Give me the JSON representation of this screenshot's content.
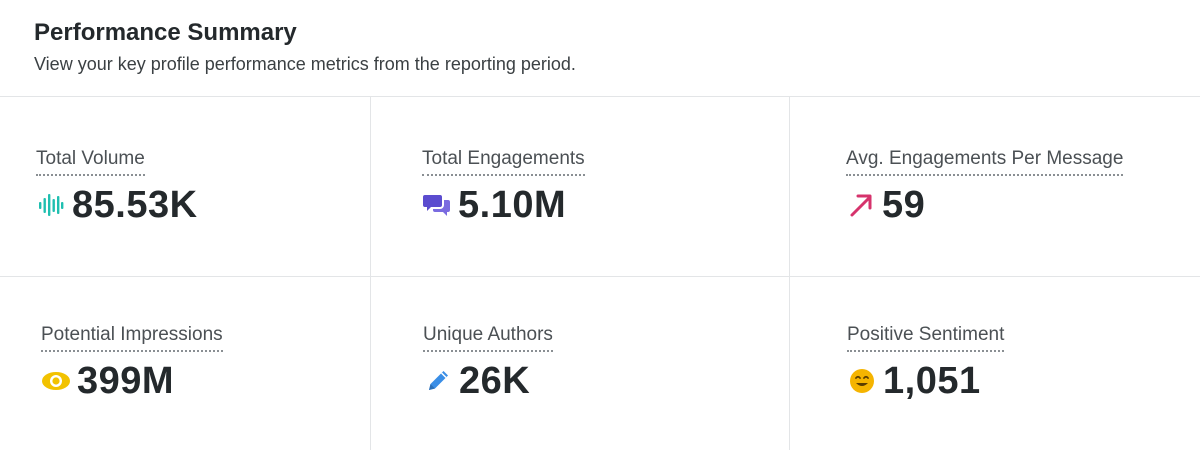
{
  "header": {
    "title": "Performance Summary",
    "subtitle": "View your key profile performance metrics from the reporting period."
  },
  "metrics": [
    {
      "label": "Total Volume",
      "value": "85.53K",
      "icon": "sound-wave-icon",
      "color": "#1fbfb0"
    },
    {
      "label": "Total Engagements",
      "value": "5.10M",
      "icon": "chat-bubbles-icon",
      "color": "#5b4ccf"
    },
    {
      "label": "Avg. Engagements Per Message",
      "value": "59",
      "icon": "trend-arrow-up-icon",
      "color": "#d6336c"
    },
    {
      "label": "Potential Impressions",
      "value": "399M",
      "icon": "eye-icon",
      "color": "#f2c200"
    },
    {
      "label": "Unique Authors",
      "value": "26K",
      "icon": "pencil-icon",
      "color": "#3a8ee6"
    },
    {
      "label": "Positive Sentiment",
      "value": "1,051",
      "icon": "smiley-face-icon",
      "color": "#f5b400"
    }
  ]
}
